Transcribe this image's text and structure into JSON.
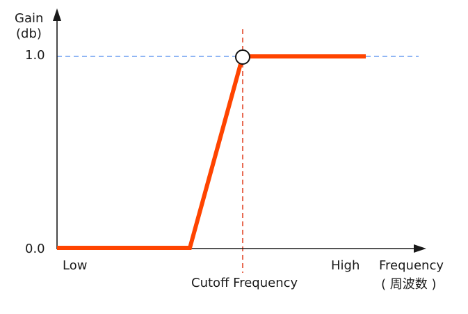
{
  "y_axis": {
    "label_line1": "Gain",
    "label_line2": "(db)",
    "tick_top": "1.0",
    "tick_bottom": "0.0"
  },
  "x_axis": {
    "low_label": "Low",
    "high_label": "High",
    "label_line1": "Frequency",
    "label_line2": "( 周波数 )"
  },
  "cutoff": {
    "label": "Cutoff Frequency"
  },
  "colors": {
    "response": "#ff4400",
    "cutoff_line": "#e03a1a",
    "reference_line": "#6b9ef0",
    "axis": "#1a1a1a",
    "marker_fill": "#ffffff",
    "marker_stroke": "#111111"
  },
  "chart_data": {
    "type": "line",
    "series": [
      {
        "points": [
          {
            "x": "low",
            "y": 0.0
          },
          {
            "x": "ramp_start",
            "y": 0.0
          },
          {
            "x": "cutoff",
            "y": 1.0
          },
          {
            "x": "high",
            "y": 1.0
          }
        ]
      }
    ],
    "reference_lines": [
      {
        "axis": "y",
        "value": 1.0,
        "style": "dashed"
      },
      {
        "axis": "x",
        "value": "cutoff",
        "style": "dashed"
      }
    ],
    "markers": [
      {
        "x": "cutoff",
        "y": 1.0,
        "shape": "open-circle"
      }
    ]
  }
}
